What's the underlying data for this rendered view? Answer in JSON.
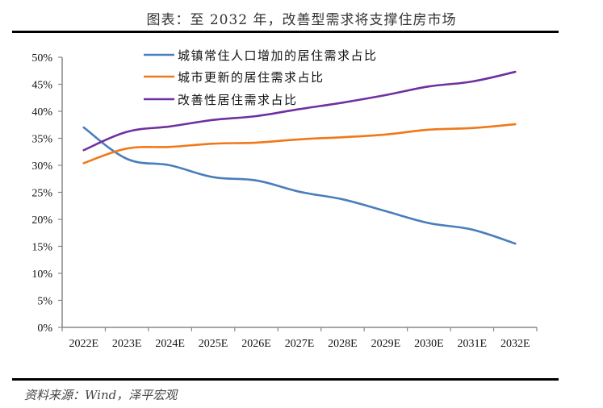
{
  "title": "图表：至 2032 年，改善型需求将支撑住房市场",
  "source": "资料来源：Wind，泽平宏观",
  "chart_data": {
    "type": "line",
    "title": "图表：至 2032 年，改善型需求将支撑住房市场",
    "xlabel": "",
    "ylabel": "",
    "categories": [
      "2022E",
      "2023E",
      "2024E",
      "2025E",
      "2026E",
      "2027E",
      "2028E",
      "2029E",
      "2030E",
      "2031E",
      "2032E"
    ],
    "ylim": [
      0,
      50
    ],
    "yticks": [
      "0%",
      "5%",
      "10%",
      "15%",
      "20%",
      "25%",
      "30%",
      "35%",
      "40%",
      "45%",
      "50%"
    ],
    "grid": false,
    "legend_position": "top-center",
    "series": [
      {
        "name": "城镇常住人口增加的居住需求占比",
        "color": "#4a7ebb",
        "values": [
          37.0,
          31.2,
          30.0,
          27.8,
          27.2,
          25.1,
          23.7,
          21.5,
          19.3,
          18.1,
          15.5
        ]
      },
      {
        "name": "城市更新的居住需求占比",
        "color": "#f07818",
        "values": [
          30.4,
          33.1,
          33.4,
          34.0,
          34.2,
          34.8,
          35.2,
          35.7,
          36.6,
          36.9,
          37.6
        ]
      },
      {
        "name": "改善性居住需求占比",
        "color": "#7030a0",
        "values": [
          32.8,
          36.2,
          37.2,
          38.4,
          39.1,
          40.4,
          41.6,
          43.0,
          44.6,
          45.5,
          47.3
        ]
      }
    ]
  }
}
